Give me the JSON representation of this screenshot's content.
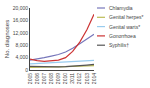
{
  "chart_data": {
    "type": "line",
    "x": [
      2005,
      2006,
      2007,
      2008,
      2009,
      2010,
      2011,
      2012,
      2013,
      2014
    ],
    "series": [
      {
        "name": "Chlamydia",
        "color": "#7777bb",
        "values": [
          3200,
          3500,
          4000,
          4500,
          5000,
          5800,
          7000,
          8500,
          10000,
          11500
        ]
      },
      {
        "name": "Genital herpes*",
        "color": "#bbbb55",
        "values": [
          800,
          900,
          950,
          1000,
          1050,
          1100,
          1150,
          1200,
          1300,
          1400
        ]
      },
      {
        "name": "Genital warts*",
        "color": "#99ccee",
        "values": [
          2000,
          2100,
          2200,
          2300,
          2400,
          2500,
          2700,
          2900,
          3000,
          3100
        ]
      },
      {
        "name": "Gonorrhoea",
        "color": "#cc3333",
        "values": [
          3500,
          3000,
          2800,
          2900,
          3200,
          4000,
          6000,
          9000,
          13000,
          18000
        ]
      },
      {
        "name": "Syphilis†",
        "color": "#555555",
        "values": [
          1200,
          1100,
          1000,
          950,
          1000,
          1100,
          1200,
          1400,
          1600,
          1800
        ]
      }
    ],
    "xlim": [
      2005,
      2014
    ],
    "xticks": [
      2005,
      2006,
      2007,
      2008,
      2009,
      2010,
      2011,
      2012,
      2013,
      2014
    ],
    "ylim": [
      0,
      20000
    ],
    "yticks": [
      0,
      {
        "value": 4000,
        "label": "4,000"
      },
      {
        "value": 8000,
        "label": "8,000"
      },
      {
        "value": 12000,
        "label": "12,000"
      },
      {
        "value": 16000,
        "label": "16,000"
      },
      {
        "value": 20000,
        "label": "20,000"
      }
    ],
    "ylabel": "No. diagnoses",
    "legend": "right",
    "grid": false
  }
}
